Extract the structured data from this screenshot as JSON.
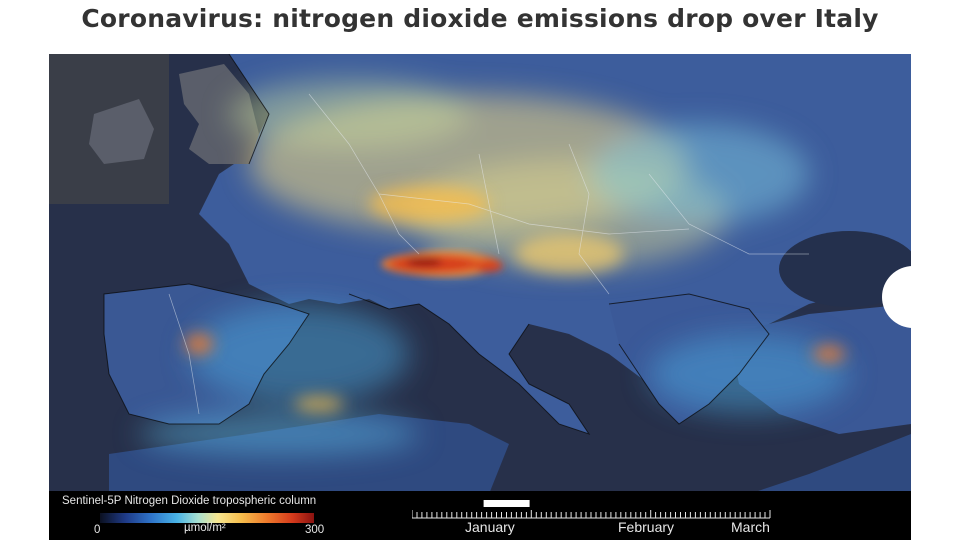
{
  "title": "Coronavirus: nitrogen dioxide emissions drop over Italy",
  "legend": {
    "title": "Sentinel-5P Nitrogen Dioxide tropospheric column",
    "min_label": "0",
    "unit_label": "µmol/m²",
    "max_label": "300",
    "colors": [
      "#0b1020",
      "#1f3b88",
      "#2f74c9",
      "#49b3e6",
      "#a9e0d0",
      "#f6e690",
      "#f6bd4c",
      "#ee7a2c",
      "#d43a1c",
      "#8a1210"
    ]
  },
  "timeline": {
    "months": [
      "January",
      "February",
      "March"
    ],
    "position_fraction": 0.2
  },
  "colors": {
    "title_text": "#333333",
    "sea": "#27304a",
    "low_emission": "#2f74c9",
    "high_emission": "#d43a1c"
  }
}
